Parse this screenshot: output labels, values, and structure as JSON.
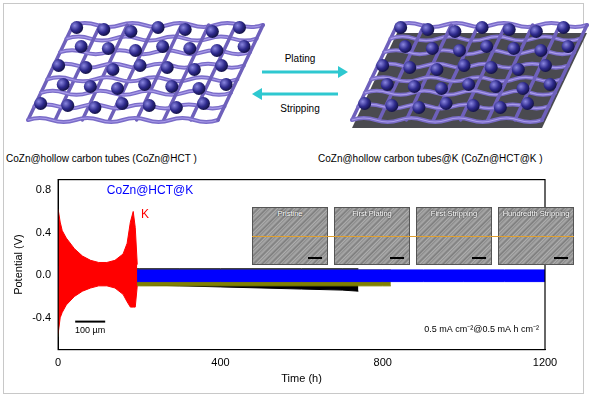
{
  "diagram": {
    "left_label": "CoZn@hollow carbon tubes (CoZn@HCT )",
    "right_label": "CoZn@hollow carbon tubes@K (CoZn@HCT@K )",
    "forward_arrow": "Plating",
    "reverse_arrow": "Stripping"
  },
  "chart_data": {
    "type": "area",
    "x_label": "Time (h)",
    "y_label": "Potential (V)",
    "xlim": [
      0,
      1200
    ],
    "xticks": [
      0,
      400,
      800,
      1200
    ],
    "ylim": [
      -0.7,
      0.9
    ],
    "yticks": [
      -0.4,
      {
        "value": 0,
        "label": "0.0"
      },
      0.4,
      0.8
    ],
    "grid": false,
    "series": [
      {
        "color": "#000000",
        "x": [
          0,
          100,
          200,
          300,
          400,
          500,
          600,
          700,
          740
        ],
        "values": [
          [
            -0.08,
            0.06
          ],
          [
            -0.08,
            0.06
          ],
          [
            -0.09,
            0.06
          ],
          [
            -0.1,
            0.06
          ],
          [
            -0.11,
            0.06
          ],
          [
            -0.12,
            0.06
          ],
          [
            -0.13,
            0.06
          ],
          [
            -0.14,
            0.06
          ],
          [
            -0.15,
            0.06
          ]
        ]
      },
      {
        "color": "#808000",
        "x": [
          0,
          5,
          100,
          200,
          300,
          400,
          500,
          600,
          700,
          800,
          820
        ],
        "values": [
          [
            -0.58,
            0.05
          ],
          [
            -0.1,
            0.05
          ],
          [
            -0.09,
            0.05
          ],
          [
            -0.1,
            0.05
          ],
          [
            -0.1,
            0.05
          ],
          [
            -0.1,
            0.05
          ],
          [
            -0.1,
            0.05
          ],
          [
            -0.1,
            0.05
          ],
          [
            -0.1,
            0.05
          ],
          [
            -0.1,
            0.05
          ],
          [
            -0.1,
            0.05
          ]
        ]
      },
      {
        "name": "CoZn@HCT@K",
        "color": "#0000ff",
        "x": [
          0,
          100,
          200,
          300,
          400,
          500,
          600,
          700,
          800,
          900,
          1000,
          1100,
          1200
        ],
        "values": [
          [
            -0.1,
            0.08
          ],
          [
            -0.07,
            0.06
          ],
          [
            -0.06,
            0.05
          ],
          [
            -0.06,
            0.05
          ],
          [
            -0.06,
            0.05
          ],
          [
            -0.06,
            0.05
          ],
          [
            -0.06,
            0.05
          ],
          [
            -0.06,
            0.05
          ],
          [
            -0.06,
            0.05
          ],
          [
            -0.06,
            0.05
          ],
          [
            -0.06,
            0.05
          ],
          [
            -0.06,
            0.05
          ],
          [
            -0.06,
            0.05
          ]
        ]
      },
      {
        "name": "K",
        "color": "#ff0000",
        "x": [
          0,
          5,
          10,
          20,
          40,
          60,
          80,
          100,
          120,
          140,
          160,
          170,
          178,
          185,
          190,
          195
        ],
        "values": [
          [
            -0.55,
            0.62
          ],
          [
            -0.4,
            0.5
          ],
          [
            -0.35,
            0.42
          ],
          [
            -0.28,
            0.35
          ],
          [
            -0.2,
            0.25
          ],
          [
            -0.15,
            0.18
          ],
          [
            -0.12,
            0.14
          ],
          [
            -0.1,
            0.12
          ],
          [
            -0.1,
            0.12
          ],
          [
            -0.12,
            0.14
          ],
          [
            -0.18,
            0.2
          ],
          [
            -0.25,
            0.3
          ],
          [
            -0.3,
            0.5
          ],
          [
            -0.3,
            0.6
          ],
          [
            -0.3,
            0.45
          ],
          [
            -0.1,
            0.1
          ]
        ]
      }
    ],
    "annotations": [
      "0.5 mA cm⁻²@0.5 mA h cm⁻²"
    ],
    "scale_bar": "100 µm",
    "insets": [
      "Pristine",
      "First Plating",
      "First Stripping",
      "Hundredth Stripping"
    ]
  }
}
